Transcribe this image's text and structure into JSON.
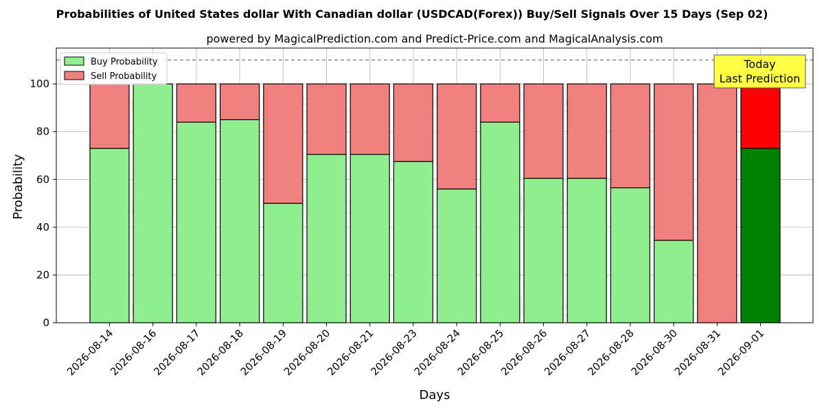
{
  "chart_data": {
    "type": "bar",
    "stacked": true,
    "title": "Probabilities of United States dollar With Canadian dollar (USDCAD(Forex)) Buy/Sell Signals Over 15 Days (Sep 02)",
    "subtitle": "powered by MagicalPrediction.com and Predict-Price.com and MagicalAnalysis.com",
    "xlabel": "Days",
    "ylabel": "Probability",
    "ylim": [
      0,
      115
    ],
    "yticks": [
      0,
      20,
      40,
      60,
      80,
      100
    ],
    "grid": true,
    "legend_position": "top-left",
    "reference_line": 110,
    "categories": [
      "2026-08-14",
      "2026-08-16",
      "2026-08-17",
      "2026-08-18",
      "2026-08-19",
      "2026-08-20",
      "2026-08-21",
      "2026-08-23",
      "2026-08-24",
      "2026-08-25",
      "2026-08-26",
      "2026-08-27",
      "2026-08-28",
      "2026-08-30",
      "2026-08-31",
      "2026-09-01"
    ],
    "series": [
      {
        "name": "Buy Probability",
        "color": "#90ee90",
        "highlight_color": "#008000",
        "values": [
          73,
          100,
          84,
          85,
          50,
          70.5,
          70.5,
          67.5,
          56,
          84,
          60.5,
          60.5,
          56.5,
          34.5,
          0,
          73
        ]
      },
      {
        "name": "Sell Probability",
        "color": "#f08080",
        "highlight_color": "#ff0000",
        "values": [
          27,
          0,
          16,
          15,
          50,
          29.5,
          29.5,
          32.5,
          44,
          16,
          39.5,
          39.5,
          43.5,
          65.5,
          100,
          27
        ]
      }
    ],
    "highlight_index": 15,
    "annotation": {
      "lines": [
        "Today",
        "Last Prediction"
      ],
      "color": "#ffff44"
    },
    "watermarks": [
      "MagicalAnalysis.com",
      "MagicalPrediction.com"
    ]
  }
}
